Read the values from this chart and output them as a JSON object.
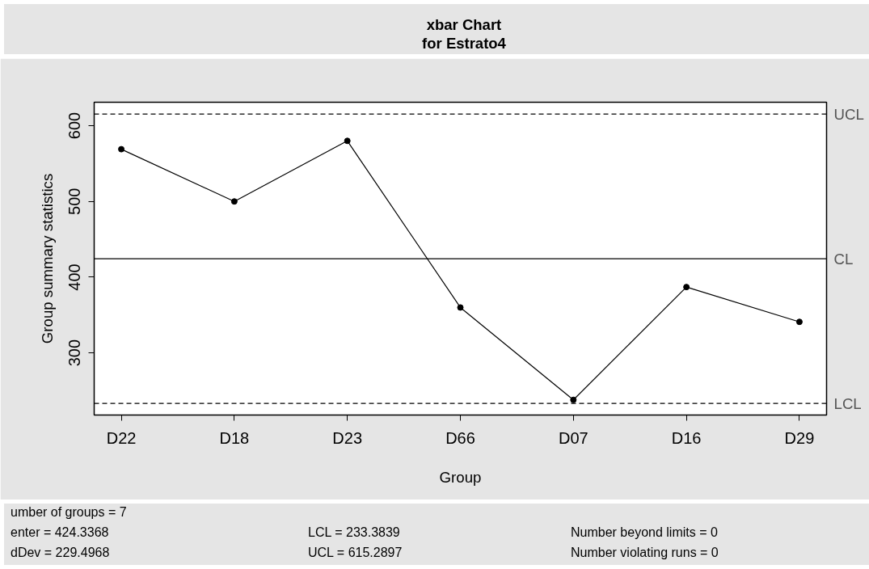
{
  "chart_data": {
    "type": "line",
    "title": "xbar Chart",
    "subtitle": "for Estrato4",
    "xlabel": "Group",
    "ylabel": "Group summary statistics",
    "categories": [
      "D22",
      "D18",
      "D23",
      "D66",
      "D07",
      "D16",
      "D29"
    ],
    "values": [
      569,
      500,
      580,
      360,
      238,
      387,
      341
    ],
    "color": "#000000",
    "marker": "circle",
    "line_style": "solid",
    "grid": false,
    "ylim": [
      218,
      631
    ],
    "yticks": [
      300,
      400,
      500,
      600
    ],
    "ref_lines": [
      {
        "axis": "y",
        "value": 615.2897,
        "label": "UCL",
        "line_style": "dashed"
      },
      {
        "axis": "y",
        "value": 424.3368,
        "label": "CL",
        "line_style": "solid"
      },
      {
        "axis": "y",
        "value": 233.3839,
        "label": "LCL",
        "line_style": "dashed"
      }
    ],
    "annotations": [
      "umber of groups = 7",
      "enter = 424.3368",
      "dDev = 229.4968",
      "LCL = 233.3839",
      "UCL = 615.2897",
      "Number beyond limits = 0",
      "Number violating runs = 0"
    ]
  }
}
